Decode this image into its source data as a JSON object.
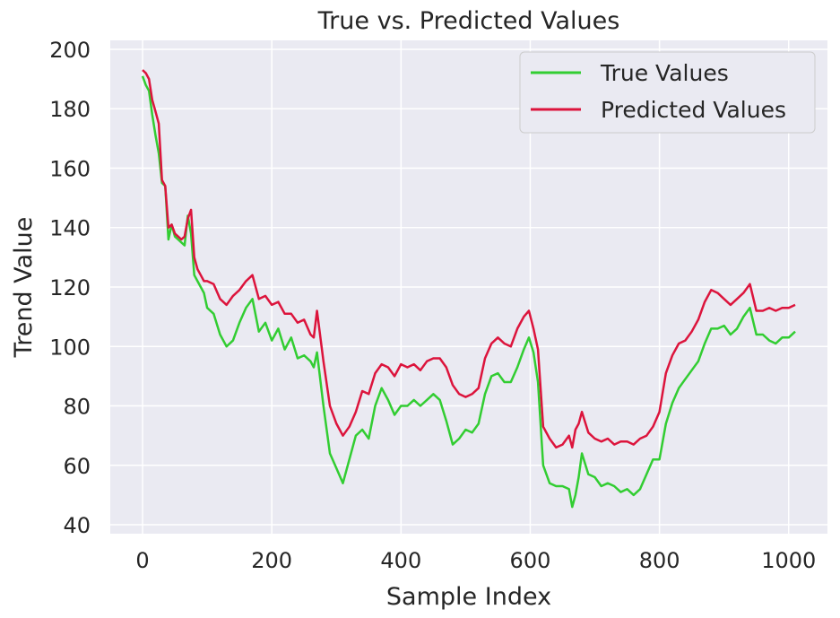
{
  "chart_data": {
    "type": "line",
    "title": "True vs. Predicted Values",
    "xlabel": "Sample Index",
    "ylabel": "Trend Value",
    "xlim": [
      -50,
      1060
    ],
    "ylim": [
      37,
      203
    ],
    "xticks": [
      0,
      200,
      400,
      600,
      800,
      1000
    ],
    "yticks": [
      40,
      60,
      80,
      100,
      120,
      140,
      160,
      180,
      200
    ],
    "grid": true,
    "legend_position": "top-right",
    "series": [
      {
        "name": "True Values",
        "color": "#32cd32",
        "x": [
          0,
          5,
          10,
          15,
          20,
          25,
          30,
          35,
          40,
          45,
          50,
          55,
          60,
          65,
          70,
          75,
          80,
          85,
          90,
          95,
          100,
          110,
          120,
          130,
          140,
          150,
          160,
          170,
          180,
          190,
          200,
          210,
          220,
          230,
          240,
          250,
          260,
          265,
          270,
          280,
          290,
          300,
          310,
          320,
          330,
          340,
          350,
          360,
          370,
          380,
          390,
          400,
          410,
          420,
          430,
          440,
          450,
          460,
          470,
          480,
          490,
          500,
          510,
          520,
          530,
          540,
          550,
          560,
          570,
          580,
          590,
          598,
          605,
          612,
          620,
          630,
          640,
          650,
          660,
          665,
          670,
          675,
          680,
          690,
          700,
          710,
          720,
          730,
          740,
          750,
          760,
          770,
          780,
          790,
          800,
          810,
          820,
          830,
          840,
          850,
          860,
          870,
          880,
          890,
          900,
          910,
          920,
          930,
          940,
          950,
          960,
          970,
          980,
          990,
          1000,
          1010
        ],
        "values": [
          191,
          188,
          186,
          178,
          171,
          165,
          155,
          154,
          136,
          141,
          137,
          136,
          135,
          134,
          144,
          138,
          124,
          122,
          120,
          118,
          113,
          111,
          104,
          100,
          102,
          108,
          113,
          116,
          105,
          108,
          102,
          106,
          99,
          103,
          96,
          97,
          95,
          93,
          98,
          80,
          64,
          59,
          54,
          62,
          70,
          72,
          69,
          80,
          86,
          82,
          77,
          80,
          80,
          82,
          80,
          82,
          84,
          82,
          75,
          67,
          69,
          72,
          71,
          74,
          84,
          90,
          91,
          88,
          88,
          93,
          99,
          103,
          98,
          88,
          60,
          54,
          53,
          53,
          52,
          46,
          50,
          56,
          64,
          57,
          56,
          53,
          54,
          53,
          51,
          52,
          50,
          52,
          57,
          62,
          62,
          74,
          81,
          86,
          89,
          92,
          95,
          101,
          106,
          106,
          107,
          104,
          106,
          110,
          113,
          104,
          104,
          102,
          101,
          103,
          103,
          105
        ]
      },
      {
        "name": "Predicted Values",
        "color": "#dc143c",
        "x": [
          0,
          5,
          10,
          15,
          20,
          25,
          30,
          35,
          40,
          45,
          50,
          55,
          60,
          65,
          70,
          75,
          80,
          85,
          90,
          95,
          100,
          110,
          120,
          130,
          140,
          150,
          160,
          170,
          180,
          190,
          200,
          210,
          220,
          230,
          240,
          250,
          260,
          265,
          270,
          280,
          290,
          300,
          310,
          320,
          330,
          340,
          350,
          360,
          370,
          380,
          390,
          400,
          410,
          420,
          430,
          440,
          450,
          460,
          470,
          480,
          490,
          500,
          510,
          520,
          530,
          540,
          550,
          560,
          570,
          580,
          590,
          598,
          605,
          612,
          620,
          630,
          640,
          650,
          660,
          665,
          670,
          675,
          680,
          690,
          700,
          710,
          720,
          730,
          740,
          750,
          760,
          770,
          780,
          790,
          800,
          810,
          820,
          830,
          840,
          850,
          860,
          870,
          880,
          890,
          900,
          910,
          920,
          930,
          940,
          950,
          960,
          970,
          980,
          990,
          1000,
          1010
        ],
        "values": [
          193,
          192,
          190,
          183,
          179,
          175,
          156,
          154,
          140,
          141,
          138,
          137,
          136,
          137,
          143,
          146,
          130,
          126,
          124,
          122,
          122,
          121,
          116,
          114,
          117,
          119,
          122,
          124,
          116,
          117,
          114,
          115,
          111,
          111,
          108,
          109,
          104,
          103,
          112,
          95,
          80,
          74,
          70,
          73,
          78,
          85,
          84,
          91,
          94,
          93,
          90,
          94,
          93,
          94,
          92,
          95,
          96,
          96,
          93,
          87,
          84,
          83,
          84,
          86,
          96,
          101,
          103,
          101,
          100,
          106,
          110,
          112,
          106,
          99,
          73,
          69,
          66,
          67,
          70,
          66,
          72,
          74,
          78,
          71,
          69,
          68,
          69,
          67,
          68,
          68,
          67,
          69,
          70,
          73,
          78,
          91,
          97,
          101,
          102,
          105,
          109,
          115,
          119,
          118,
          116,
          114,
          116,
          118,
          121,
          112,
          112,
          113,
          112,
          113,
          113,
          114
        ]
      }
    ]
  }
}
